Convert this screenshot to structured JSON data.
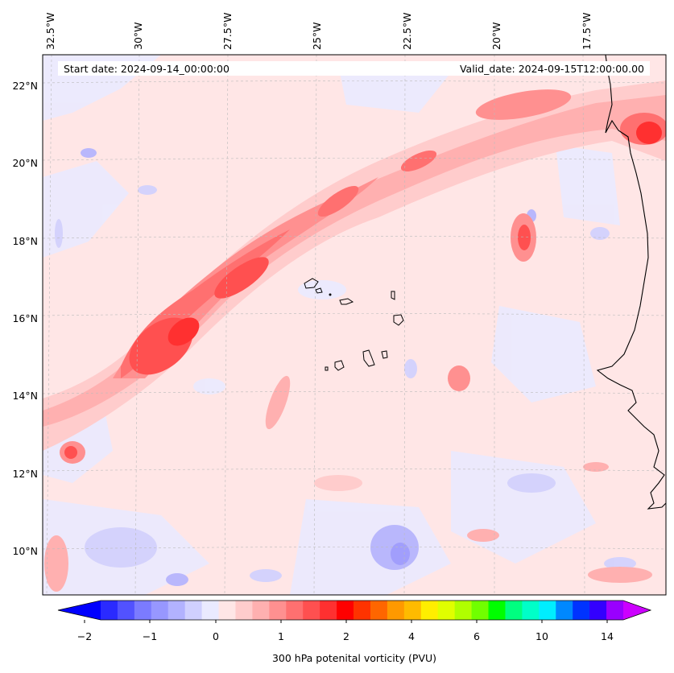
{
  "map": {
    "start_date_label": "Start date: 2024-09-14_00:00:00",
    "valid_date_label": "Valid_date: 2024-09-15T12:00:00.00",
    "lon_ticks": [
      "32.5°W",
      "30°W",
      "27.5°W",
      "25°W",
      "22.5°W",
      "20°W",
      "17.5°W"
    ],
    "lat_ticks": [
      "22°N",
      "20°N",
      "18°N",
      "16°N",
      "14°N",
      "12°N",
      "10°N"
    ],
    "colors": {
      "background": "#ffe8e8",
      "coast": "#000000",
      "grid": "#bbbbbb"
    }
  },
  "colorbar": {
    "label": "300 hPa potenital vorticity (PVU)",
    "tick_labels": [
      "−2",
      "−1",
      "0",
      "1",
      "2",
      "4",
      "6",
      "10",
      "14"
    ],
    "colors": [
      "#0000ff",
      "#2a2aff",
      "#5252ff",
      "#7b7bff",
      "#9797ff",
      "#b2b2ff",
      "#d0d0ff",
      "#eaeaff",
      "#ffe6e6",
      "#ffcccc",
      "#ffb0b0",
      "#ff9090",
      "#ff7070",
      "#ff5050",
      "#ff3030",
      "#ff0000",
      "#ff3300",
      "#ff6600",
      "#ff9900",
      "#ffbb00",
      "#ffee00",
      "#e0ff00",
      "#b0ff00",
      "#70ff00",
      "#00ff00",
      "#00ff80",
      "#00ffc8",
      "#00eeff",
      "#0088ff",
      "#0033ff",
      "#3300ff",
      "#9900ff",
      "#cc00ff"
    ]
  }
}
